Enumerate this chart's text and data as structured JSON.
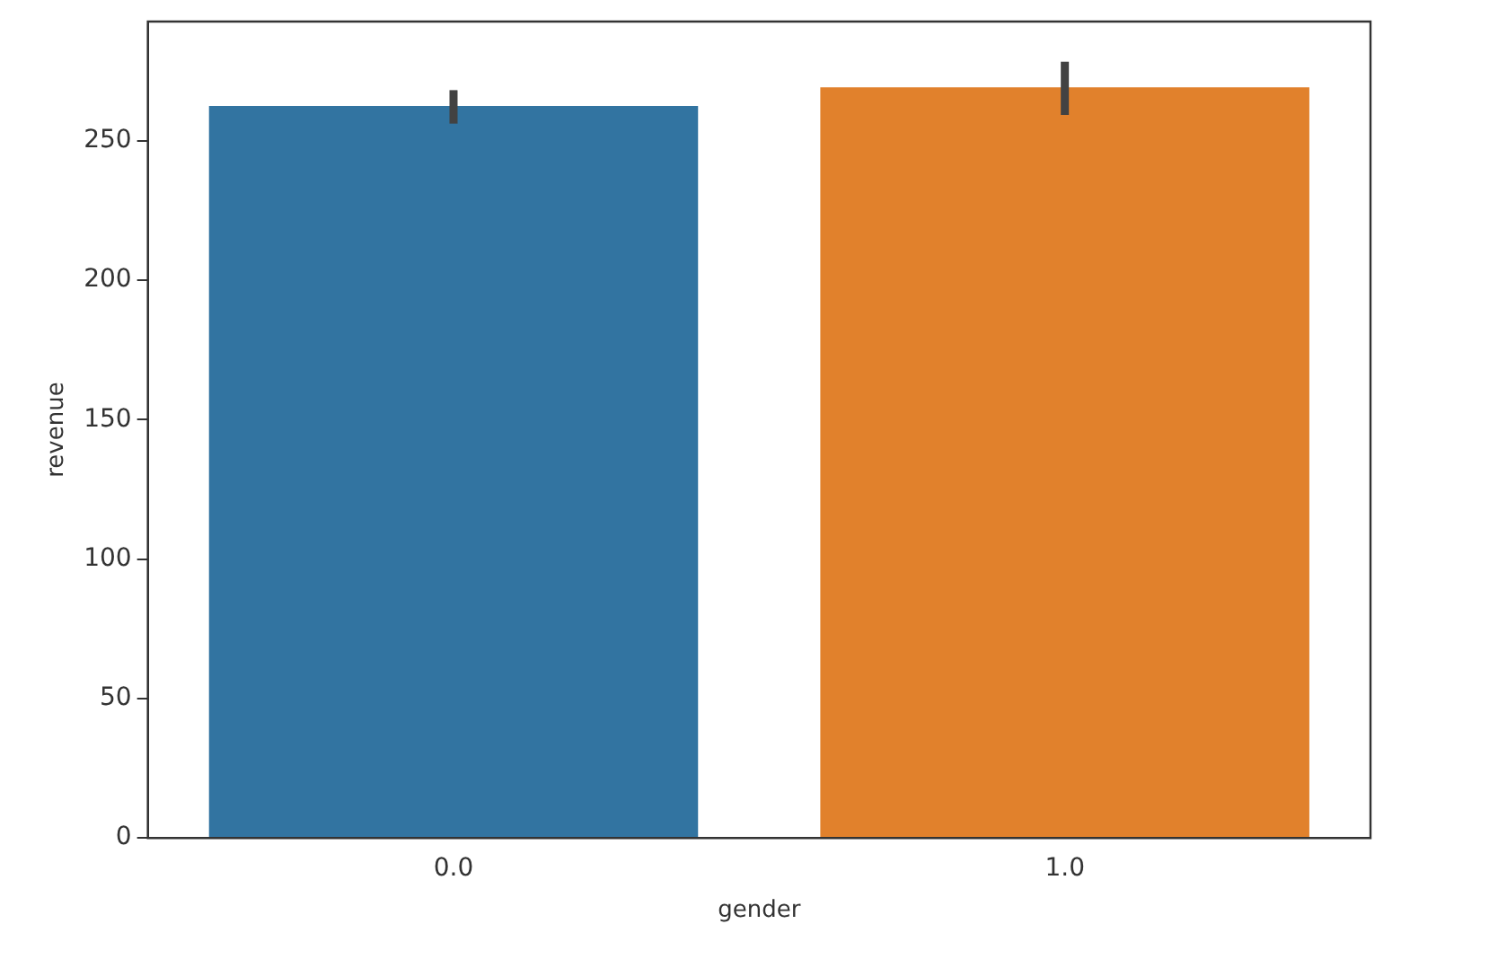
{
  "chart_data": {
    "type": "bar",
    "categories": [
      "0.0",
      "1.0"
    ],
    "values": [
      262.5,
      269.2
    ],
    "colors": [
      "#3274a1",
      "#e1812c"
    ],
    "errors": [
      [
        256.2,
        268.2
      ],
      [
        259.3,
        278.4
      ]
    ],
    "xlabel": "gender",
    "ylabel": "revenue",
    "ylim": [
      0,
      292.8
    ],
    "yticks": [
      0,
      50,
      100,
      150,
      200,
      250
    ],
    "grid": false,
    "legend": false
  }
}
